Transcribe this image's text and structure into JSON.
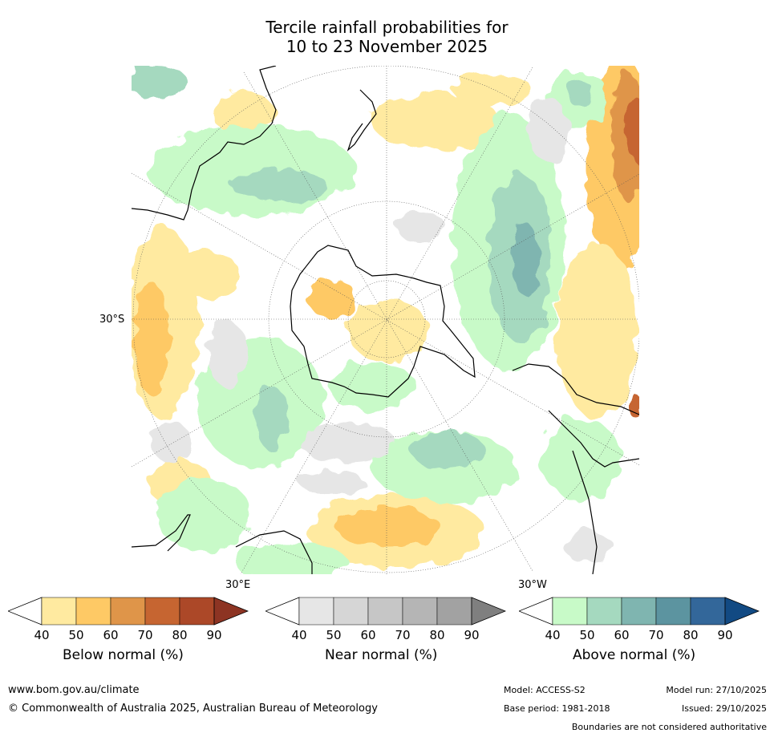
{
  "title": {
    "line1": "Tercile rainfall probabilities for",
    "line2": "10 to 23 November 2025"
  },
  "map": {
    "projection": "south-polar-stereographic",
    "lat_label": "30°S",
    "lon_label_east": "30°E",
    "lon_label_west": "30°W"
  },
  "colorbars": [
    {
      "name": "below",
      "label": "Below normal (%)",
      "ticks": [
        "40",
        "50",
        "60",
        "70",
        "80",
        "90"
      ],
      "colors": [
        "#ffffff",
        "#ffeaa0",
        "#fec965",
        "#df9549",
        "#c66531",
        "#ac4828",
        "#8d3423"
      ]
    },
    {
      "name": "near",
      "label": "Near normal (%)",
      "ticks": [
        "40",
        "50",
        "60",
        "70",
        "80",
        "90"
      ],
      "colors": [
        "#ffffff",
        "#e6e6e6",
        "#d6d6d6",
        "#c6c6c6",
        "#b5b5b5",
        "#a2a2a2",
        "#7f7f7f"
      ]
    },
    {
      "name": "above",
      "label": "Above normal (%)",
      "ticks": [
        "40",
        "50",
        "60",
        "70",
        "80",
        "90"
      ],
      "colors": [
        "#ffffff",
        "#c8fac8",
        "#a5d9bf",
        "#7fb5b0",
        "#5c94a0",
        "#33679a",
        "#124a83"
      ]
    }
  ],
  "footer": {
    "website": "www.bom.gov.au/climate",
    "copyright": "© Commonwealth of Australia 2025, Australian Bureau of Meteorology",
    "model": "Model: ACCESS-S2",
    "base_period": "Base period: 1981-2018",
    "model_run": "Model run: 27/10/2025",
    "issued": "Issued: 29/10/2025",
    "disclaimer": "Boundaries are not considered authoritative"
  }
}
